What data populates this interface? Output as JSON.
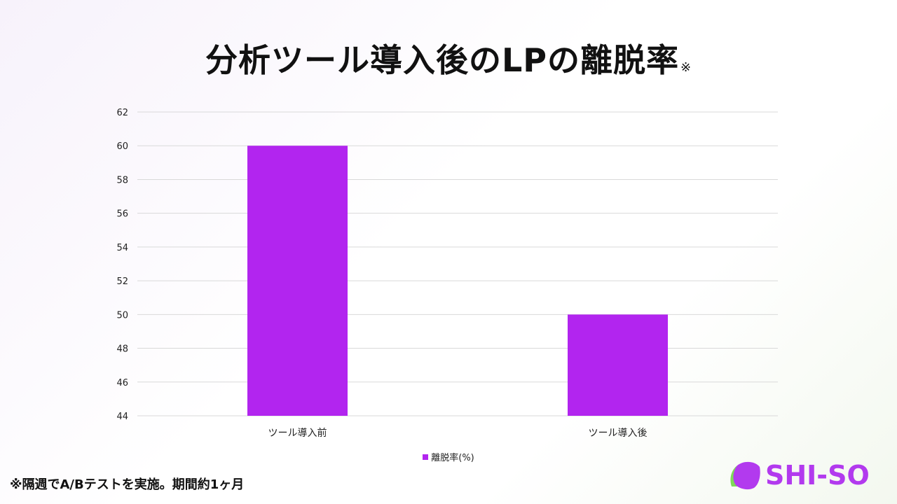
{
  "title": "分析ツール導入後のLPの離脱率",
  "title_mark": "※",
  "footnote": "※隔週でA/Bテストを実施。期間約1ヶ月",
  "logo": {
    "text": "SHI-SO",
    "color": "#b23aee",
    "leaf_color": "#7ed957"
  },
  "chart_data": {
    "type": "bar",
    "categories": [
      "ツール導入前",
      "ツール導入後"
    ],
    "series": [
      {
        "name": "離脱率(%)",
        "values": [
          60,
          50
        ],
        "color": "#b225ef"
      }
    ],
    "ylim": [
      44,
      62
    ],
    "yticks": [
      44,
      46,
      48,
      50,
      52,
      54,
      56,
      58,
      60,
      62
    ],
    "grid": true,
    "legend_position": "bottom"
  }
}
